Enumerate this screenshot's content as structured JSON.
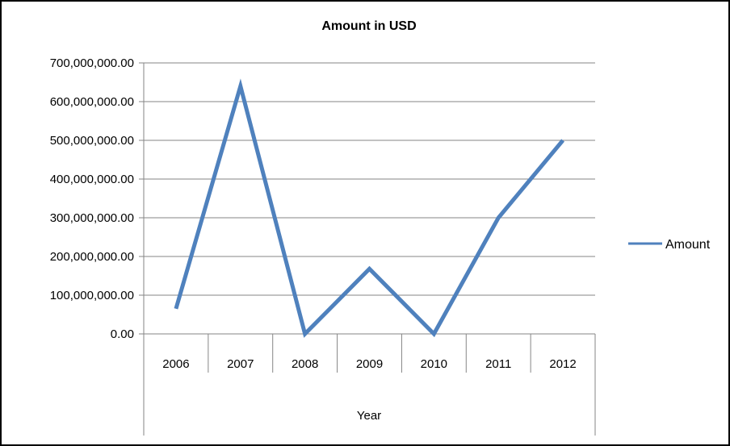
{
  "chart_data": {
    "type": "line",
    "title": "Amount in USD",
    "xlabel": "Year",
    "ylabel": "",
    "categories": [
      "2006",
      "2007",
      "2008",
      "2009",
      "2010",
      "2011",
      "2012"
    ],
    "series": [
      {
        "name": "Amount",
        "values": [
          65000000,
          640000000,
          0,
          168000000,
          0,
          300000000,
          500000000
        ],
        "color": "#4f81bd"
      }
    ],
    "ylim": [
      0,
      700000000
    ],
    "yticks": [
      0,
      100000000,
      200000000,
      300000000,
      400000000,
      500000000,
      600000000,
      700000000
    ],
    "ytick_labels": [
      "0.00",
      "100,000,000.00",
      "200,000,000.00",
      "300,000,000.00",
      "400,000,000.00",
      "500,000,000.00",
      "600,000,000.00",
      "700,000,000.00"
    ],
    "grid": true,
    "legend_position": "right",
    "gridline_color": "#868686",
    "border_color": "#000000"
  }
}
